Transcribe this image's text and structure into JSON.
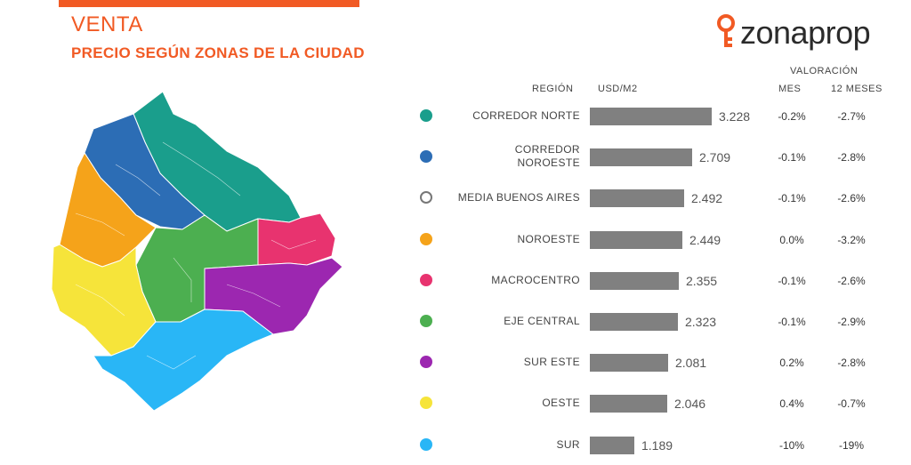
{
  "header": {
    "title": "VENTA",
    "subtitle": "PRECIO SEGÚN ZONAS DE LA CIUDAD",
    "logo_text": "zonaprop"
  },
  "table_headers": {
    "region": "REGIÓN",
    "price": "USD/M2",
    "valoracion": "VALORACIÓN",
    "mes": "MES",
    "doce_meses": "12 MESES"
  },
  "colors": {
    "accent": "#f15a24",
    "bar": "#808080"
  },
  "chart_data": {
    "type": "bar",
    "orientation": "horizontal",
    "title": "PRECIO SEGÚN ZONAS DE LA CIUDAD",
    "ylabel": "USD/M2",
    "xlim": [
      0,
      3228
    ],
    "rows": [
      {
        "region": [
          "CORREDOR NORTE"
        ],
        "value": 3228,
        "label": "3.228",
        "mes": "-0.2%",
        "doce": "-2.7%",
        "color": "#1a9e8c",
        "outline": false
      },
      {
        "region": [
          "CORREDOR",
          "NOROESTE"
        ],
        "value": 2709,
        "label": "2.709",
        "mes": "-0.1%",
        "doce": "-2.8%",
        "color": "#2c6db5",
        "outline": false
      },
      {
        "region": [
          "MEDIA BUENOS AIRES"
        ],
        "value": 2492,
        "label": "2.492",
        "mes": "-0.1%",
        "doce": "-2.6%",
        "color": "#ffffff",
        "outline": true
      },
      {
        "region": [
          "NOROESTE"
        ],
        "value": 2449,
        "label": "2.449",
        "mes": "0.0%",
        "doce": "-3.2%",
        "color": "#f5a31a",
        "outline": false
      },
      {
        "region": [
          "MACROCENTRO"
        ],
        "value": 2355,
        "label": "2.355",
        "mes": "-0.1%",
        "doce": "-2.6%",
        "color": "#e8336f",
        "outline": false
      },
      {
        "region": [
          "EJE CENTRAL"
        ],
        "value": 2323,
        "label": "2.323",
        "mes": "-0.1%",
        "doce": "-2.9%",
        "color": "#4caf50",
        "outline": false
      },
      {
        "region": [
          "SUR ESTE"
        ],
        "value": 2081,
        "label": "2.081",
        "mes": "0.2%",
        "doce": "-2.8%",
        "color": "#9c27b0",
        "outline": false
      },
      {
        "region": [
          "OESTE"
        ],
        "value": 2046,
        "label": "2.046",
        "mes": "0.4%",
        "doce": "-0.7%",
        "color": "#f6e43a",
        "outline": false
      },
      {
        "region": [
          "SUR"
        ],
        "value": 1189,
        "label": "1.189",
        "mes": "-10%",
        "doce": "-19%",
        "color": "#29b6f6",
        "outline": false
      }
    ]
  }
}
